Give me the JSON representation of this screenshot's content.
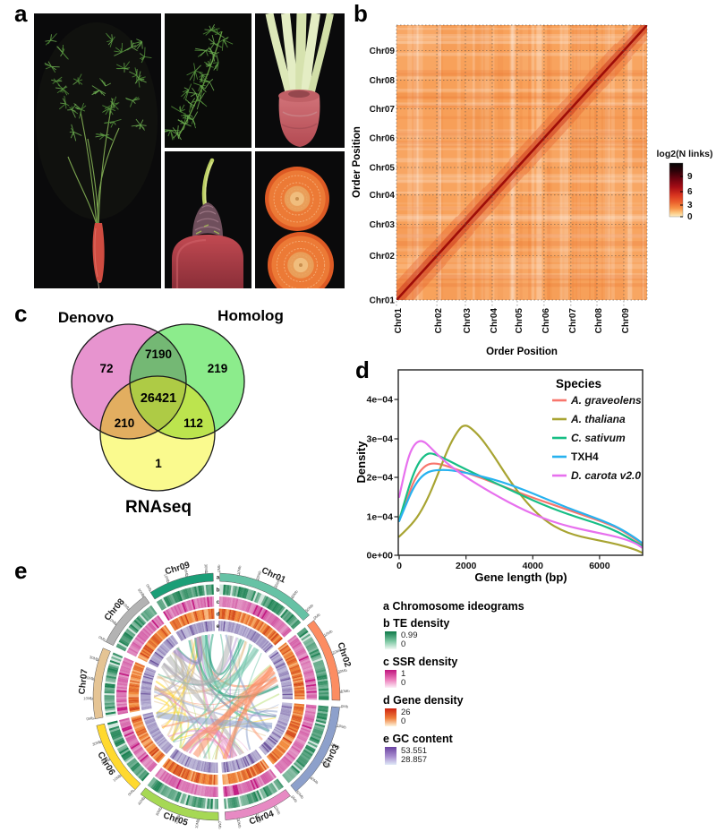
{
  "figure": {
    "panels": {
      "a": {
        "label": "a",
        "photos": [
          "whole carrot plant",
          "compound leaf",
          "petioles and root shoulder",
          "root crown with sprout",
          "taproot cross-sections"
        ]
      },
      "b": {
        "label": "b"
      },
      "c": {
        "label": "c"
      },
      "d": {
        "label": "d"
      },
      "e": {
        "label": "e"
      }
    }
  },
  "chart_data": [
    {
      "id": "hic_heatmap",
      "type": "heatmap",
      "panel": "b",
      "xlabel": "Order Position",
      "ylabel": "Order Position",
      "x_categories": [
        "Chr01",
        "Chr02",
        "Chr03",
        "Chr04",
        "Chr05",
        "Chr06",
        "Chr07",
        "Chr08",
        "Chr09"
      ],
      "y_categories": [
        "Chr01",
        "Chr02",
        "Chr03",
        "Chr04",
        "Chr05",
        "Chr06",
        "Chr07",
        "Chr08",
        "Chr09"
      ],
      "chromosome_rel_sizes": [
        0.161,
        0.114,
        0.107,
        0.1,
        0.107,
        0.107,
        0.104,
        0.107,
        0.093
      ],
      "colorbar": {
        "title": "log2(N links)",
        "ticks": [
          "9",
          "6",
          "3",
          "0"
        ]
      },
      "pattern": "Hi-C contact matrix: dark-red self-interaction diagonal blocks per chromosome on orange background"
    },
    {
      "id": "gene_set_venn",
      "type": "venn",
      "panel": "c",
      "sets": [
        "Denovo",
        "Homolog",
        "RNAseq"
      ],
      "values": {
        "Denovo_only": 72,
        "Homolog_only": 219,
        "RNAseq_only": 1,
        "Denovo_Homolog": 7190,
        "Denovo_RNAseq": 210,
        "Homolog_RNAseq": 112,
        "all_three": 26421
      },
      "colors": {
        "Denovo": "#E794CF",
        "Homolog": "#8CEC8C",
        "RNAseq": "#FAFA8E",
        "Denovo_Homolog": "#74B874",
        "Denovo_RNAseq": "#E2AE60",
        "Homolog_RNAseq": "#BCE44E",
        "all_three": "#AECB45"
      }
    },
    {
      "id": "gene_length_density",
      "type": "line",
      "panel": "d",
      "xlabel": "Gene length (bp)",
      "ylabel": "Density",
      "legend_title": "Species",
      "xlim": [
        0,
        7200
      ],
      "x_ticks": [
        "0",
        "2000",
        "4000",
        "6000"
      ],
      "y_ticks": [
        "0e+00",
        "1e−04",
        "2e−04",
        "3e−04",
        "4e−04"
      ],
      "series": [
        {
          "name": "A. graveolens",
          "color": "#F8766D",
          "italic": true,
          "points": [
            [
              0,
              0.88
            ],
            [
              200,
              1.35
            ],
            [
              400,
              1.85
            ],
            [
              600,
              2.15
            ],
            [
              800,
              2.32
            ],
            [
              1000,
              2.37
            ],
            [
              1250,
              2.34
            ],
            [
              1500,
              2.27
            ],
            [
              2000,
              2.12
            ],
            [
              2500,
              1.97
            ],
            [
              3000,
              1.8
            ],
            [
              3500,
              1.63
            ],
            [
              4000,
              1.47
            ],
            [
              4500,
              1.32
            ],
            [
              5000,
              1.17
            ],
            [
              5500,
              1.02
            ],
            [
              6000,
              0.87
            ],
            [
              6500,
              0.7
            ],
            [
              7000,
              0.42
            ],
            [
              7200,
              0.3
            ]
          ]
        },
        {
          "name": "A. thaliana",
          "color": "#A8A432",
          "italic": true,
          "points": [
            [
              0,
              0.48
            ],
            [
              300,
              0.72
            ],
            [
              600,
              1.05
            ],
            [
              900,
              1.55
            ],
            [
              1200,
              2.2
            ],
            [
              1500,
              2.85
            ],
            [
              1800,
              3.28
            ],
            [
              1950,
              3.35
            ],
            [
              2100,
              3.3
            ],
            [
              2400,
              3.05
            ],
            [
              2700,
              2.7
            ],
            [
              3000,
              2.3
            ],
            [
              3300,
              1.9
            ],
            [
              3600,
              1.55
            ],
            [
              4000,
              1.15
            ],
            [
              4400,
              0.85
            ],
            [
              4800,
              0.65
            ],
            [
              5200,
              0.52
            ],
            [
              5600,
              0.44
            ],
            [
              6000,
              0.37
            ],
            [
              6500,
              0.28
            ],
            [
              7000,
              0.15
            ],
            [
              7200,
              0.07
            ]
          ]
        },
        {
          "name": "C. sativum",
          "color": "#17BE85",
          "italic": true,
          "points": [
            [
              0,
              0.9
            ],
            [
              200,
              1.5
            ],
            [
              400,
              2.05
            ],
            [
              600,
              2.42
            ],
            [
              800,
              2.6
            ],
            [
              950,
              2.63
            ],
            [
              1200,
              2.55
            ],
            [
              1500,
              2.42
            ],
            [
              2000,
              2.2
            ],
            [
              2500,
              2.0
            ],
            [
              3000,
              1.8
            ],
            [
              3500,
              1.6
            ],
            [
              4000,
              1.4
            ],
            [
              4500,
              1.22
            ],
            [
              5000,
              1.06
            ],
            [
              5500,
              0.92
            ],
            [
              6000,
              0.78
            ],
            [
              6500,
              0.6
            ],
            [
              7000,
              0.35
            ],
            [
              7200,
              0.25
            ]
          ]
        },
        {
          "name": "TXH4",
          "color": "#27B2EF",
          "italic": false,
          "points": [
            [
              0,
              0.88
            ],
            [
              200,
              1.3
            ],
            [
              400,
              1.7
            ],
            [
              600,
              1.97
            ],
            [
              800,
              2.12
            ],
            [
              1000,
              2.18
            ],
            [
              1300,
              2.2
            ],
            [
              1600,
              2.18
            ],
            [
              2000,
              2.12
            ],
            [
              2500,
              2.02
            ],
            [
              3000,
              1.9
            ],
            [
              3500,
              1.75
            ],
            [
              4000,
              1.58
            ],
            [
              4500,
              1.4
            ],
            [
              5000,
              1.22
            ],
            [
              5500,
              1.06
            ],
            [
              6000,
              0.9
            ],
            [
              6500,
              0.72
            ],
            [
              7000,
              0.45
            ],
            [
              7200,
              0.32
            ]
          ]
        },
        {
          "name": "D. carota v2.0",
          "color": "#E770EE",
          "italic": true,
          "points": [
            [
              0,
              1.5
            ],
            [
              150,
              2.1
            ],
            [
              300,
              2.6
            ],
            [
              450,
              2.85
            ],
            [
              600,
              2.95
            ],
            [
              750,
              2.92
            ],
            [
              900,
              2.8
            ],
            [
              1100,
              2.62
            ],
            [
              1400,
              2.38
            ],
            [
              1700,
              2.18
            ],
            [
              2000,
              2.0
            ],
            [
              2500,
              1.73
            ],
            [
              3000,
              1.48
            ],
            [
              3500,
              1.25
            ],
            [
              4000,
              1.05
            ],
            [
              4500,
              0.88
            ],
            [
              5000,
              0.75
            ],
            [
              5500,
              0.65
            ],
            [
              6000,
              0.56
            ],
            [
              6500,
              0.47
            ],
            [
              7000,
              0.32
            ],
            [
              7200,
              0.2
            ]
          ]
        }
      ]
    },
    {
      "id": "genome_circos",
      "type": "circos",
      "panel": "e",
      "tick_unit": "Mb",
      "tick_interval_mb": 10,
      "chromosomes": [
        {
          "name": "Chr01",
          "length_mb": 52,
          "color": "#66C2A5"
        },
        {
          "name": "Chr02",
          "length_mb": 44,
          "color": "#FC8D62"
        },
        {
          "name": "Chr03",
          "length_mb": 50,
          "color": "#8DA0CB"
        },
        {
          "name": "Chr04",
          "length_mb": 36,
          "color": "#E78AC3"
        },
        {
          "name": "Chr05",
          "length_mb": 43,
          "color": "#A6D854"
        },
        {
          "name": "Chr06",
          "length_mb": 39,
          "color": "#FFD92F"
        },
        {
          "name": "Chr07",
          "length_mb": 37,
          "color": "#E5C494"
        },
        {
          "name": "Chr08",
          "length_mb": 31,
          "color": "#B3B3B3"
        },
        {
          "name": "Chr09",
          "length_mb": 34,
          "color": "#1B9E77"
        }
      ],
      "track_letters": [
        "a",
        "b",
        "c",
        "d",
        "e"
      ],
      "tracks": [
        {
          "letter": "a",
          "label": "Chromosome ideograms",
          "max": "",
          "min": ""
        },
        {
          "letter": "b",
          "label": "TE density",
          "max": "0.99",
          "min": "0",
          "color": "#0E7A48"
        },
        {
          "letter": "c",
          "label": "SSR density",
          "max": "1",
          "min": "0",
          "color": "#C0147E"
        },
        {
          "letter": "d",
          "label": "Gene density",
          "max": "26",
          "min": "0",
          "color": "#D2300F"
        },
        {
          "letter": "e",
          "label": "GC content",
          "max": "53.551",
          "min": "28.857",
          "color": "#5A3D8F"
        }
      ]
    }
  ]
}
